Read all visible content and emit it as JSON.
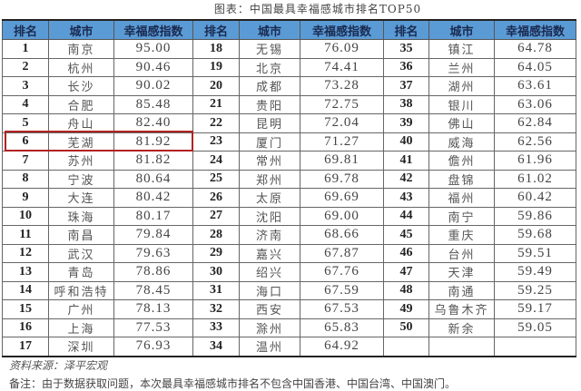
{
  "title": "图表：中国最具幸福感城市排名TOP50",
  "headers": [
    "排名",
    "城市",
    "幸福感指数",
    "排名",
    "城市",
    "幸福感指数",
    "排名",
    "城市",
    "幸福感指数"
  ],
  "rows": [
    [
      "1",
      "南京",
      "95.00",
      "18",
      "无锡",
      "76.09",
      "35",
      "镇江",
      "64.78"
    ],
    [
      "2",
      "杭州",
      "90.46",
      "19",
      "北京",
      "74.41",
      "36",
      "兰州",
      "64.05"
    ],
    [
      "3",
      "长沙",
      "90.02",
      "20",
      "成都",
      "73.28",
      "37",
      "湖州",
      "63.61"
    ],
    [
      "4",
      "合肥",
      "85.48",
      "21",
      "贵阳",
      "72.75",
      "38",
      "银川",
      "63.06"
    ],
    [
      "5",
      "舟山",
      "82.40",
      "22",
      "昆明",
      "72.04",
      "39",
      "佛山",
      "62.84"
    ],
    [
      "6",
      "芜湖",
      "81.92",
      "23",
      "厦门",
      "71.27",
      "40",
      "威海",
      "62.56"
    ],
    [
      "7",
      "苏州",
      "81.82",
      "24",
      "常州",
      "69.81",
      "41",
      "儋州",
      "61.96"
    ],
    [
      "8",
      "宁波",
      "80.64",
      "25",
      "郑州",
      "69.78",
      "42",
      "盘锦",
      "61.02"
    ],
    [
      "9",
      "大连",
      "80.42",
      "26",
      "太原",
      "69.69",
      "43",
      "福州",
      "60.42"
    ],
    [
      "10",
      "珠海",
      "80.17",
      "27",
      "沈阳",
      "69.00",
      "44",
      "南宁",
      "59.86"
    ],
    [
      "11",
      "南昌",
      "79.84",
      "28",
      "济南",
      "68.66",
      "45",
      "重庆",
      "59.68"
    ],
    [
      "12",
      "武汉",
      "79.63",
      "29",
      "嘉兴",
      "67.87",
      "46",
      "台州",
      "59.51"
    ],
    [
      "13",
      "青岛",
      "78.86",
      "30",
      "绍兴",
      "67.76",
      "47",
      "天津",
      "59.49"
    ],
    [
      "14",
      "呼和浩特",
      "78.45",
      "31",
      "海口",
      "67.59",
      "48",
      "南通",
      "59.25"
    ],
    [
      "15",
      "广州",
      "78.13",
      "32",
      "西安",
      "67.53",
      "49",
      "乌鲁木齐",
      "59.17"
    ],
    [
      "16",
      "上海",
      "77.53",
      "33",
      "滁州",
      "65.83",
      "50",
      "新余",
      "59.05"
    ],
    [
      "17",
      "深圳",
      "76.93",
      "34",
      "温州",
      "64.92",
      "",
      "",
      ""
    ]
  ],
  "highlight_rank": "6",
  "highlight_color": "#b22222",
  "header_color": "#5b9bd5",
  "source": "资料来源：泽平宏观",
  "note": "备注：由于数据获取问题，本次最具幸福感城市排名不包含中国香港、中国台湾、中国澳门。"
}
